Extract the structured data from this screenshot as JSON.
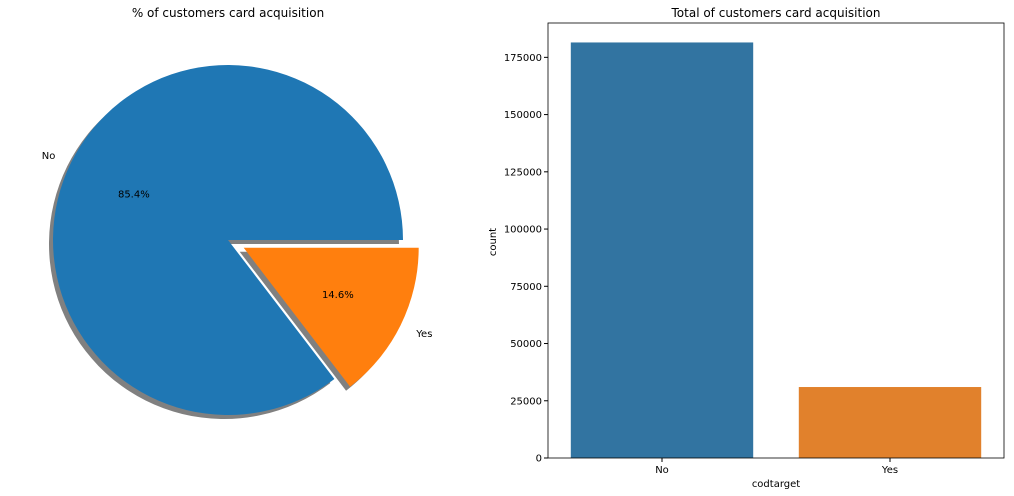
{
  "chart_data": [
    {
      "type": "pie",
      "title": "% of customers card acquisition",
      "labels": [
        "No",
        "Yes"
      ],
      "values": [
        85.4,
        14.6
      ],
      "autopct": [
        "85.4%",
        "14.6%"
      ],
      "explode": [
        0,
        0.1
      ],
      "shadow": true,
      "colors": [
        "#1f77b4",
        "#ff7f0e"
      ]
    },
    {
      "type": "bar",
      "title": "Total of customers card acquisition",
      "xlabel": "codtarget",
      "ylabel": "count",
      "categories": [
        "No",
        "Yes"
      ],
      "values": [
        181500,
        31000
      ],
      "ylim": [
        0,
        190000
      ],
      "yticks": [
        0,
        25000,
        50000,
        75000,
        100000,
        125000,
        150000,
        175000
      ],
      "colors": [
        "#3274a1",
        "#e1812c"
      ],
      "grid": false
    }
  ]
}
